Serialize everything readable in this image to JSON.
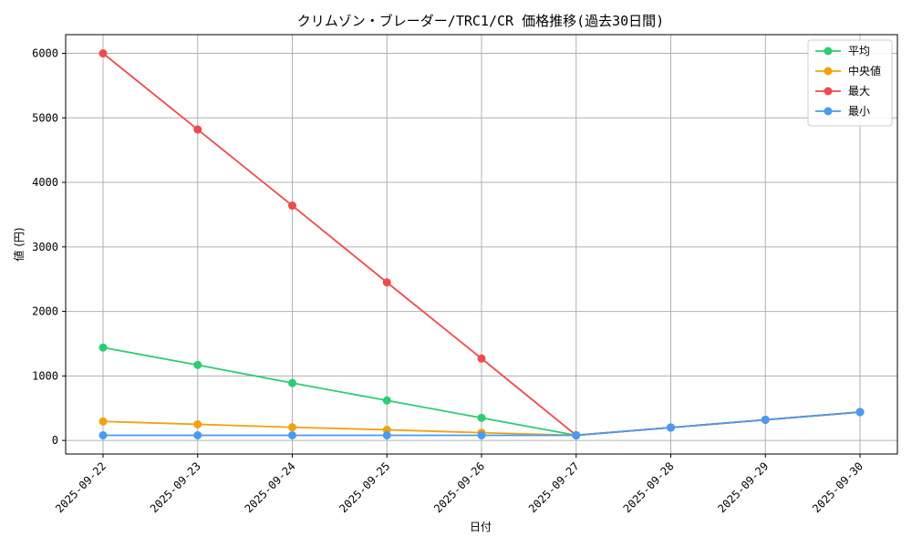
{
  "chart_data": {
    "type": "line",
    "title": "クリムゾン・ブレーダー/TRC1/CR 価格推移(過去30日間)",
    "xlabel": "日付",
    "ylabel": "値 (円)",
    "categories": [
      "2025-09-22",
      "2025-09-23",
      "2025-09-24",
      "2025-09-25",
      "2025-09-26",
      "2025-09-27",
      "2025-09-28",
      "2025-09-29",
      "2025-09-30"
    ],
    "yticks": [
      0,
      1000,
      2000,
      3000,
      4000,
      5000,
      6000
    ],
    "ylim": [
      -210,
      6290
    ],
    "grid": true,
    "legend_position": "top-right",
    "series": [
      {
        "name": "平均",
        "color": "#2ecc71",
        "values": [
          1440,
          1170,
          890,
          620,
          350,
          80,
          200,
          320,
          440
        ]
      },
      {
        "name": "中央値",
        "color": "#f5a00f",
        "values": [
          295,
          250,
          205,
          165,
          120,
          80,
          200,
          320,
          440
        ]
      },
      {
        "name": "最大",
        "color": "#f04a4a",
        "values": [
          6000,
          4820,
          3640,
          2450,
          1270,
          80,
          200,
          320,
          440
        ]
      },
      {
        "name": "最小",
        "color": "#4a9af0",
        "values": [
          80,
          80,
          80,
          80,
          80,
          80,
          200,
          320,
          440
        ]
      }
    ]
  }
}
